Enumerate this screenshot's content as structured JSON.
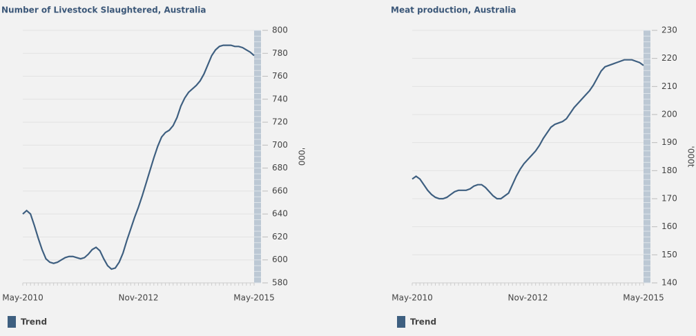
{
  "chart_data": [
    {
      "type": "line",
      "title": "Number of Livestock Slaughtered, Australia",
      "ylabel": "'000",
      "categories": [
        "May-2010",
        null,
        null,
        null,
        null,
        null,
        null,
        null,
        null,
        null,
        null,
        null,
        null,
        null,
        null,
        null,
        null,
        null,
        null,
        null,
        null,
        null,
        null,
        null,
        null,
        null,
        null,
        null,
        null,
        null,
        "Nov-2012",
        null,
        null,
        null,
        null,
        null,
        null,
        null,
        null,
        null,
        null,
        null,
        null,
        null,
        null,
        null,
        null,
        null,
        null,
        null,
        null,
        null,
        null,
        null,
        null,
        null,
        null,
        null,
        null,
        null,
        "May-2015"
      ],
      "series": [
        {
          "name": "Trend",
          "color": "#3e5f80",
          "values": [
            640,
            643,
            640,
            630,
            619,
            609,
            601,
            598,
            597,
            598,
            600,
            602,
            603,
            603,
            602,
            601,
            602,
            605,
            609,
            611,
            608,
            601,
            595,
            592,
            593,
            598,
            606,
            617,
            627,
            637,
            646,
            656,
            667,
            678,
            689,
            699,
            707,
            711,
            713,
            717,
            724,
            734,
            741,
            746,
            749,
            752,
            756,
            762,
            770,
            778,
            783,
            786,
            787,
            787,
            787,
            786,
            786,
            785,
            783,
            781,
            778
          ]
        }
      ],
      "ylim": [
        580,
        800
      ],
      "yticks": [
        580,
        600,
        620,
        640,
        660,
        680,
        700,
        720,
        740,
        760,
        780,
        800
      ],
      "grid": true,
      "legend": "bottom-left"
    },
    {
      "type": "line",
      "title": "Meat production, Australia",
      "ylabel": "'000t",
      "categories": [
        "May-2010",
        null,
        null,
        null,
        null,
        null,
        null,
        null,
        null,
        null,
        null,
        null,
        null,
        null,
        null,
        null,
        null,
        null,
        null,
        null,
        null,
        null,
        null,
        null,
        null,
        null,
        null,
        null,
        null,
        null,
        "Nov-2012",
        null,
        null,
        null,
        null,
        null,
        null,
        null,
        null,
        null,
        null,
        null,
        null,
        null,
        null,
        null,
        null,
        null,
        null,
        null,
        null,
        null,
        null,
        null,
        null,
        null,
        null,
        null,
        null,
        null,
        "May-2015"
      ],
      "series": [
        {
          "name": "Trend",
          "color": "#3e5f80",
          "values": [
            177,
            178,
            177,
            175,
            173,
            171.5,
            170.5,
            170,
            170,
            170.5,
            171.5,
            172.5,
            173,
            173,
            173,
            173.5,
            174.5,
            175,
            175,
            174,
            172.5,
            171,
            170,
            170,
            171,
            172,
            175,
            178,
            180.5,
            182.5,
            184,
            185.5,
            187,
            189,
            191.5,
            193.5,
            195.5,
            196.5,
            197,
            197.5,
            198.5,
            200.5,
            202.5,
            204,
            205.5,
            207,
            208.5,
            210.5,
            213,
            215.5,
            217,
            217.5,
            218,
            218.5,
            219,
            219.5,
            219.5,
            219.5,
            219,
            218.5,
            217.5
          ]
        }
      ],
      "ylim": [
        140,
        230
      ],
      "yticks": [
        140,
        150,
        160,
        170,
        180,
        190,
        200,
        210,
        220,
        230
      ],
      "grid": true,
      "legend": "bottom-left"
    }
  ]
}
